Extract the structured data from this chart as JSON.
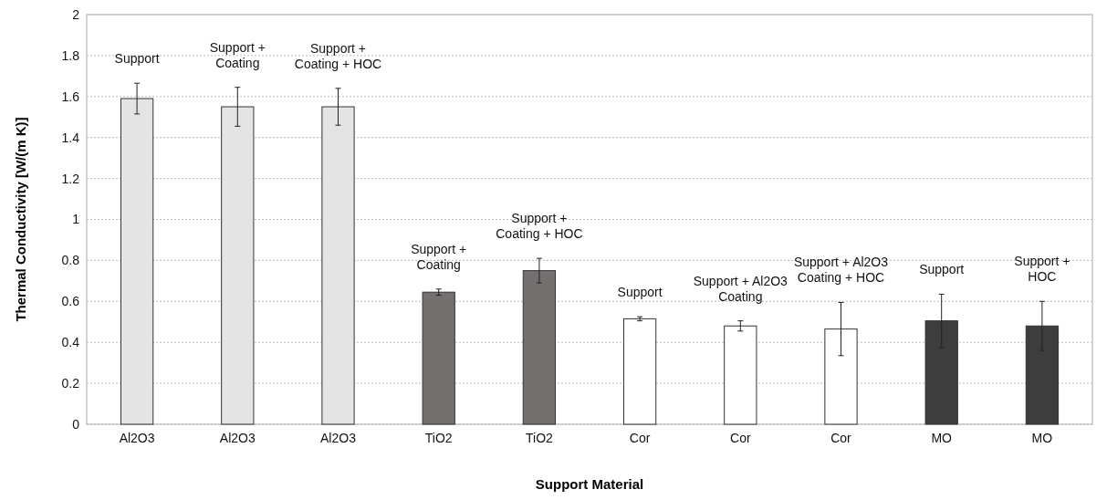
{
  "chart_data": {
    "type": "bar",
    "xlabel": "Support Material",
    "ylabel": "Thermal Conductivity [W/(m K)]",
    "categories": [
      "Al2O3",
      "Al2O3",
      "Al2O3",
      "TiO2",
      "TiO2",
      "Cor",
      "Cor",
      "Cor",
      "MO",
      "MO"
    ],
    "values": [
      1.59,
      1.55,
      1.55,
      0.645,
      0.75,
      0.515,
      0.48,
      0.465,
      0.505,
      0.48
    ],
    "errors": [
      0.075,
      0.095,
      0.09,
      0.015,
      0.06,
      0.01,
      0.025,
      0.13,
      0.13,
      0.12
    ],
    "colors": [
      "#e4e4e4",
      "#e4e4e4",
      "#e4e4e4",
      "#757070",
      "#757070",
      "#ffffff",
      "#ffffff",
      "#ffffff",
      "#3d3d3d",
      "#3d3d3d"
    ],
    "ylim": [
      0,
      2
    ],
    "yticks": [
      0,
      0.2,
      0.4,
      0.6,
      0.8,
      1,
      1.2,
      1.4,
      1.6,
      1.8,
      2
    ],
    "grid": "y",
    "annotations": [
      "Support",
      "Support +\nCoating",
      "Support +\nCoating + HOC",
      "Support +\nCoating",
      "Support +\nCoating + HOC",
      "Support",
      "Support + Al2O3\nCoating",
      "Support + Al2O3\nCoating + HOC",
      "Support",
      "Support +\nHOC"
    ]
  }
}
